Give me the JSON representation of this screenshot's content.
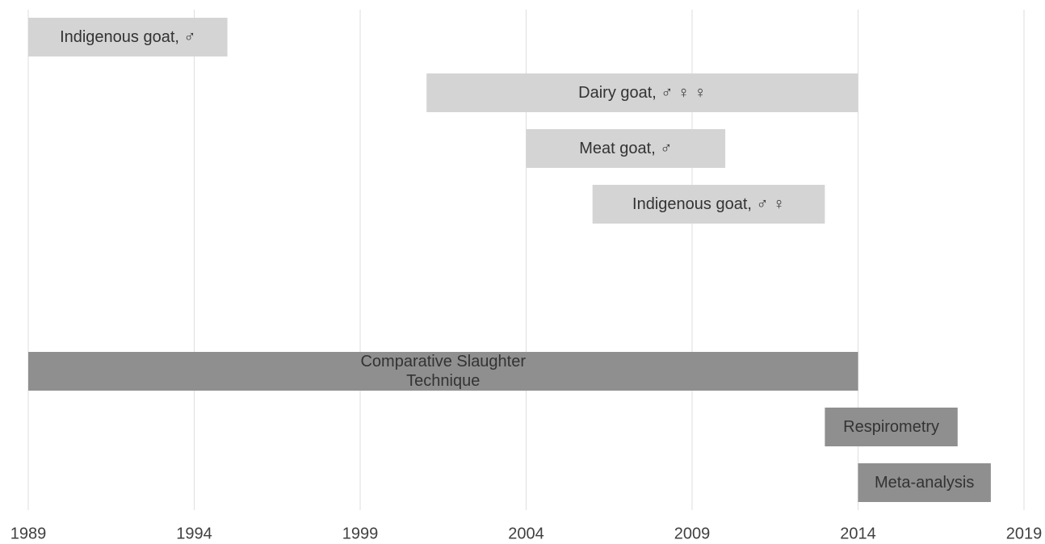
{
  "chart_data": {
    "type": "gantt",
    "categories": [
      "Indigenous goat, ♂",
      "Dairy goat, ♂ ♀ ♀",
      "Meat goat, ♂",
      "Indigenous goat, ♂ ♀",
      null,
      null,
      "Comparative Slaughter Technique",
      "Respirometry",
      "Meta-analysis"
    ],
    "start": [
      1989,
      2001,
      2004,
      2006,
      null,
      null,
      1989,
      2013,
      2014
    ],
    "end": [
      1995,
      2014,
      2010,
      2013,
      null,
      null,
      2014,
      2017,
      2018
    ],
    "colors": [
      "#d4d4d4",
      "#d4d4d4",
      "#d4d4d4",
      "#d4d4d4",
      null,
      null,
      "#8f8f8f",
      "#8f8f8f",
      "#8f8f8f"
    ],
    "xlim": [
      1989,
      2019
    ],
    "xticks": [
      1989,
      1994,
      1999,
      2004,
      2009,
      2014,
      2019
    ],
    "grid": true
  }
}
